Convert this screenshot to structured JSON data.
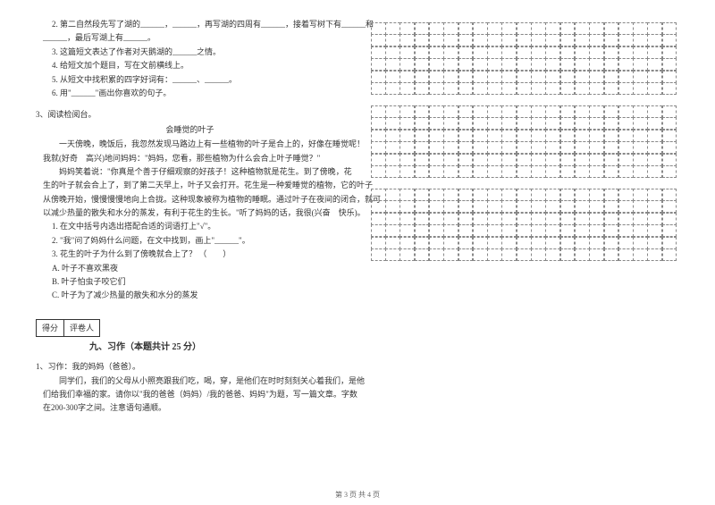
{
  "left": {
    "q2_lines": [
      "2. 第二自然段先写了湖的______，______，再写湖的四周有______，接着写树下有______和",
      "______，最后写湖上有______。",
      "3. 这篇短文表达了作者对天鹅湖的______之情。",
      "4. 给短文加个题目，写在文前横线上。",
      "5. 从短文中找积累的四字好词有：______、______。",
      "6. 用\"______\"画出你喜欢的句子。"
    ],
    "q3_header": "3、阅读检阅台。",
    "q3_title": "会睡觉的叶子",
    "q3_body": [
      "　　一天傍晚，晚饭后，我忽然发现马路边上有一些植物的叶子是合上的，好像在睡觉呢！",
      "我就(好奇　高兴)地问妈妈：\"妈妈，您看，那些植物为什么会合上叶子睡觉？\"",
      "　　妈妈笑着说：\"你真是个善于仔细观察的好孩子！这种植物就是花生。到了傍晚，花",
      "生的叶子就会合上了，到了第二天早上，叶子又会打开。花生是一种爱睡觉的植物，它的叶子",
      "从傍晚开始，慢慢慢慢地向上合拢。这种现象被称为植物的睡眠。通过叶子在夜间的闭合，就可",
      "以减少热量的散失和水分的蒸发，有利于花生的生长。\"听了妈妈的话，我很(兴奋　快乐)。"
    ],
    "q3_sub": [
      "1. 在文中括号内选出搭配合适的词语打上\"√\"。",
      "2. \"我\"问了妈妈什么问题，在文中找到，画上\"______\"。",
      "3. 花生的叶子为什么到了傍晚就合上了？ （　　）",
      "A. 叶子不喜欢黑夜",
      "B. 叶子怕虫子咬它们",
      "C. 叶子为了减少热量的散失和水分的蒸发"
    ],
    "score_labels": [
      "得分",
      "评卷人"
    ],
    "section9": "九、习作（本题共计 25 分）",
    "xz_header": "1、习作：我的妈妈（爸爸）。",
    "xz_body": [
      "　　同学们，我们的父母从小照亮跟我们吃，喝，穿，是他们在时时刻刻关心着我们，是他",
      "们给我们幸福的家。请你以\"我的爸爸（妈妈）/我的爸爸、妈妈\"为题，写一篇文章。字数",
      "在200-300字之间。注意语句通顺。"
    ]
  },
  "grid": {
    "blocks": 3,
    "rows_per_block": 6,
    "cols": 21
  },
  "footer": "第 3 页 共 4 页"
}
